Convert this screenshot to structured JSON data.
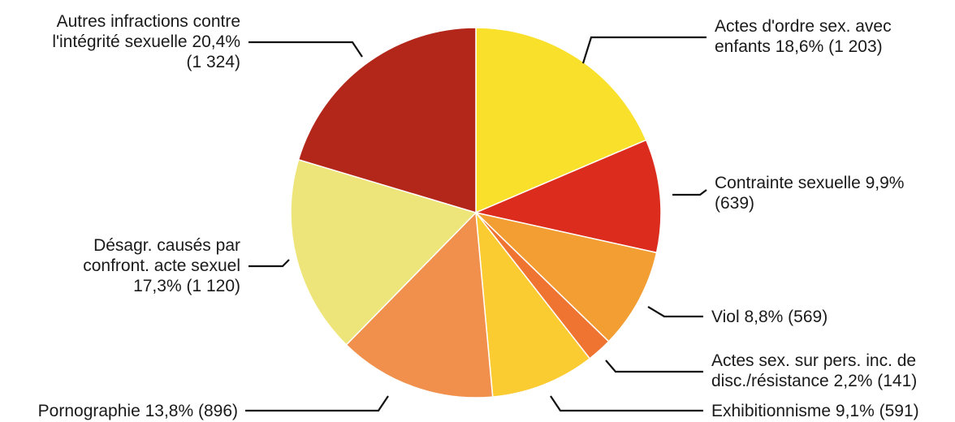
{
  "chart_data": {
    "type": "pie",
    "start_angle_deg": 0,
    "direction": "clockwise",
    "slices": [
      {
        "key": "actes-enfants",
        "value": 18.6,
        "count": 1203,
        "color": "#F9E02B",
        "label_lines": [
          "Actes d'ordre sex. avec",
          "enfants 18,6% (1 203)"
        ]
      },
      {
        "key": "contrainte",
        "value": 9.9,
        "count": 639,
        "color": "#DB2C1E",
        "label_lines": [
          "Contrainte sexuelle 9,9%",
          "(639)"
        ]
      },
      {
        "key": "viol",
        "value": 8.8,
        "count": 569,
        "color": "#F29E33",
        "label_lines": [
          "Viol 8,8% (569)"
        ]
      },
      {
        "key": "actes-incapables",
        "value": 2.2,
        "count": 141,
        "color": "#EF7431",
        "label_lines": [
          "Actes sex. sur pers. inc. de",
          "disc./résistance 2,2% (141)"
        ]
      },
      {
        "key": "exhibitionnisme",
        "value": 9.1,
        "count": 591,
        "color": "#FBCB32",
        "label_lines": [
          "Exhibitionnisme 9,1% (591)"
        ]
      },
      {
        "key": "pornographie",
        "value": 13.8,
        "count": 896,
        "color": "#F0904C",
        "label_lines": [
          "Pornographie 13,8% (896)"
        ]
      },
      {
        "key": "desagr",
        "value": 17.3,
        "count": 1120,
        "color": "#EEE57A",
        "label_lines": [
          "Désagr. causés par",
          "confront. acte sexuel",
          "17,3% (1 120)"
        ]
      },
      {
        "key": "autres",
        "value": 20.4,
        "count": 1324,
        "color": "#B3271A",
        "label_lines": [
          "Autres infractions contre",
          "l'intégrité sexuelle 20,4%",
          "(1 324)"
        ]
      }
    ]
  }
}
